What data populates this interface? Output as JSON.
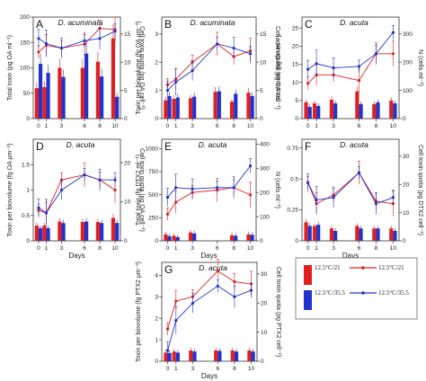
{
  "colors": {
    "red": "#e02020",
    "blue": "#2233cc",
    "frame": "#333333"
  },
  "legend": {
    "items": [
      {
        "label": "12.5°C/21",
        "color": "#e02020"
      },
      {
        "label": "12.5°C/35.5",
        "color": "#2233cc"
      }
    ]
  },
  "chart_data": [
    {
      "letter": "A",
      "title": "D. acuminata",
      "type": "bar+line",
      "x": [
        0,
        1,
        3,
        6,
        8,
        10
      ],
      "xlabel": "",
      "ylabel_left": "Total toxin (pg OA ml⁻¹)",
      "ylabel_right": "Cell toxin quota (pg OA cell⁻¹)",
      "left_ticks": [
        0,
        50,
        100,
        150,
        200
      ],
      "left_lim": [
        0,
        200
      ],
      "right_ticks": [
        0,
        5,
        10,
        15
      ],
      "right_lim": [
        0,
        18
      ],
      "bars": [
        {
          "name": "12.5°C/21",
          "values": [
            60,
            62,
            100,
            100,
            112,
            158
          ]
        },
        {
          "name": "12.5°C/35.5",
          "values": [
            108,
            90,
            82,
            128,
            83,
            43
          ]
        }
      ],
      "lines": [
        {
          "name": "12.5°C/21",
          "values": [
            11.8,
            13.0,
            12.5,
            13.2,
            16.0,
            15.8
          ]
        },
        {
          "name": "12.5°C/35.5",
          "values": [
            14.2,
            13.3,
            12.5,
            13.8,
            14.2,
            15.5
          ]
        }
      ]
    },
    {
      "letter": "B",
      "title": "D. acuminata",
      "type": "bar+line",
      "x": [
        0,
        1,
        3,
        6,
        8,
        10
      ],
      "xlabel": "",
      "ylabel_left": "Toxin per biovolume (fg OA μm⁻³)",
      "ylabel_right": "Cell toxin quota (pg OA cell⁻¹)",
      "left_ticks": [
        0,
        1,
        2,
        3
      ],
      "left_lim": [
        0,
        3.6
      ],
      "right_ticks": [
        0,
        5,
        10,
        15
      ],
      "right_lim": [
        0,
        18
      ],
      "bars": [
        {
          "name": "12.5°C/21",
          "values": [
            0.65,
            0.7,
            0.72,
            0.95,
            0.6,
            0.92
          ]
        },
        {
          "name": "12.5°C/35.5",
          "values": [
            0.8,
            0.75,
            0.78,
            0.97,
            0.88,
            0.8
          ]
        }
      ],
      "lines": [
        {
          "name": "12.5°C/21",
          "values": [
            1.2,
            1.4,
            2.0,
            2.65,
            2.2,
            2.4
          ]
        },
        {
          "name": "12.5°C/35.5",
          "values": [
            1.0,
            1.3,
            1.7,
            2.65,
            2.5,
            2.3
          ]
        }
      ]
    },
    {
      "letter": "C",
      "title": "D. acuta",
      "type": "bar+line",
      "x": [
        0,
        1,
        3,
        6,
        8,
        10
      ],
      "xlabel": "",
      "ylabel_left": "Total toxin (pg OA ml⁻¹)",
      "ylabel_right": "N (cells ml⁻¹)",
      "left_ticks": [
        0,
        5,
        10,
        15,
        20,
        25
      ],
      "left_lim": [
        0,
        28
      ],
      "right_ticks": [
        0,
        100,
        200,
        300
      ],
      "right_lim": [
        0,
        360
      ],
      "bars": [
        {
          "name": "12.5°C/21",
          "values": [
            4.5,
            4.2,
            5.2,
            7.5,
            4.0,
            5.0
          ]
        },
        {
          "name": "12.5°C/35.5",
          "values": [
            3.2,
            3.5,
            4.2,
            4.0,
            4.5,
            4.2
          ]
        }
      ],
      "lines": [
        {
          "name": "12.5°C/21",
          "values": [
            125,
            155,
            155,
            135,
            230,
            230
          ]
        },
        {
          "name": "12.5°C/35.5",
          "values": [
            175,
            195,
            180,
            185,
            230,
            305
          ]
        }
      ]
    },
    {
      "letter": "D",
      "title": "D. acuta",
      "type": "bar+line",
      "x": [
        0,
        1,
        3,
        6,
        8,
        10
      ],
      "xlabel": "Days",
      "ylabel_left": "Toxin per biovolume (fg OA μm⁻³)",
      "ylabel_right": "Cell toxin quota (pg OA cell⁻¹)",
      "left_ticks": [
        0.0,
        0.5,
        1.0,
        1.5
      ],
      "left_lim": [
        0,
        2.0
      ],
      "right_ticks": [
        0,
        10,
        20
      ],
      "right_lim": [
        0,
        26
      ],
      "bars": [
        {
          "name": "12.5°C/21",
          "values": [
            0.3,
            0.3,
            0.38,
            0.37,
            0.37,
            0.45
          ]
        },
        {
          "name": "12.5°C/35.5",
          "values": [
            0.25,
            0.25,
            0.35,
            0.38,
            0.35,
            0.35
          ]
        }
      ],
      "lines": [
        {
          "name": "12.5°C/21",
          "values": [
            0.6,
            0.55,
            1.2,
            1.3,
            1.2,
            1.0
          ]
        },
        {
          "name": "12.5°C/35.5",
          "values": [
            0.65,
            0.55,
            1.0,
            1.3,
            1.2,
            1.2
          ]
        }
      ]
    },
    {
      "letter": "E",
      "title": "D. acuta",
      "type": "bar+line",
      "x": [
        0,
        1,
        3,
        6,
        8,
        10
      ],
      "xlabel": "Days",
      "ylabel_left": "Total toxin (fg DTX2 ml⁻¹)",
      "ylabel_right": "N (cells ml⁻¹)",
      "left_ticks": [
        0,
        250,
        500,
        750,
        1000
      ],
      "left_lim": [
        0,
        1100
      ],
      "right_ticks": [
        0,
        100,
        200,
        300,
        400
      ],
      "right_lim": [
        0,
        420
      ],
      "bars": [
        {
          "name": "12.5°C/21",
          "values": [
            70,
            55,
            90,
            0,
            60,
            70
          ]
        },
        {
          "name": "12.5°C/35.5",
          "values": [
            50,
            40,
            80,
            0,
            55,
            65
          ]
        }
      ],
      "lines": [
        {
          "name": "12.5°C/21",
          "values": [
            110,
            160,
            200,
            210,
            220,
            190
          ]
        },
        {
          "name": "12.5°C/35.5",
          "values": [
            180,
            220,
            215,
            220,
            220,
            310
          ]
        }
      ]
    },
    {
      "letter": "F",
      "title": "D. acuta",
      "type": "bar+line",
      "x": [
        0,
        1,
        3,
        6,
        8,
        10
      ],
      "xlabel": "Days",
      "ylabel_left": "",
      "ylabel_right": "Cell toxin quota (pg DTX2 cell⁻¹)",
      "left_ticks": [
        0.0,
        0.25,
        0.5,
        0.75
      ],
      "left_lim": [
        0,
        0.82
      ],
      "right_ticks": [
        0,
        10,
        20,
        30
      ],
      "right_lim": [
        0,
        36
      ],
      "bars": [
        {
          "name": "12.5°C/21",
          "values": [
            0.15,
            0.12,
            0.1,
            0.12,
            0.1,
            0.1
          ]
        },
        {
          "name": "12.5°C/35.5",
          "values": [
            0.12,
            0.13,
            0.08,
            0.1,
            0.1,
            0.08
          ]
        }
      ],
      "lines": [
        {
          "name": "12.5°C/21",
          "values": [
            0.47,
            0.3,
            0.37,
            0.55,
            0.32,
            0.3
          ]
        },
        {
          "name": "12.5°C/35.5",
          "values": [
            0.47,
            0.33,
            0.35,
            0.55,
            0.3,
            0.35
          ]
        }
      ]
    },
    {
      "letter": "G",
      "title": "D. acuta",
      "type": "bar+line",
      "x": [
        0,
        1,
        3,
        6,
        8,
        10
      ],
      "xlabel": "Days",
      "ylabel_left": "Toxin per biovolume (fg PTX2 μm⁻³)",
      "ylabel_right": "Cell toxin quota (pg PTX2 cell⁻¹)",
      "left_ticks": [
        0,
        1,
        2,
        3,
        4
      ],
      "left_lim": [
        0,
        4.6
      ],
      "right_ticks": [
        0,
        10,
        20,
        30
      ],
      "right_lim": [
        0,
        34
      ],
      "bars": [
        {
          "name": "12.5°C/21",
          "values": [
            0.4,
            0.45,
            0.5,
            0.5,
            0.5,
            0.5
          ]
        },
        {
          "name": "12.5°C/35.5",
          "values": [
            0.38,
            0.4,
            0.45,
            0.48,
            0.45,
            0.45
          ]
        }
      ],
      "lines": [
        {
          "name": "12.5°C/21",
          "values": [
            1.5,
            2.8,
            3.0,
            4.2,
            3.7,
            3.6
          ]
        },
        {
          "name": "12.5°C/35.5",
          "values": [
            0.5,
            1.9,
            2.7,
            3.5,
            3.0,
            3.3
          ]
        }
      ]
    }
  ]
}
